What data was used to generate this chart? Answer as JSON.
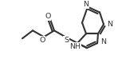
{
  "bg_color": "#ffffff",
  "line_color": "#333333",
  "line_width": 1.5,
  "font_size": 6.8,
  "figsize": [
    1.53,
    0.74
  ],
  "dpi": 100,
  "xlim": [
    0,
    153
  ],
  "ylim": [
    0,
    74
  ]
}
